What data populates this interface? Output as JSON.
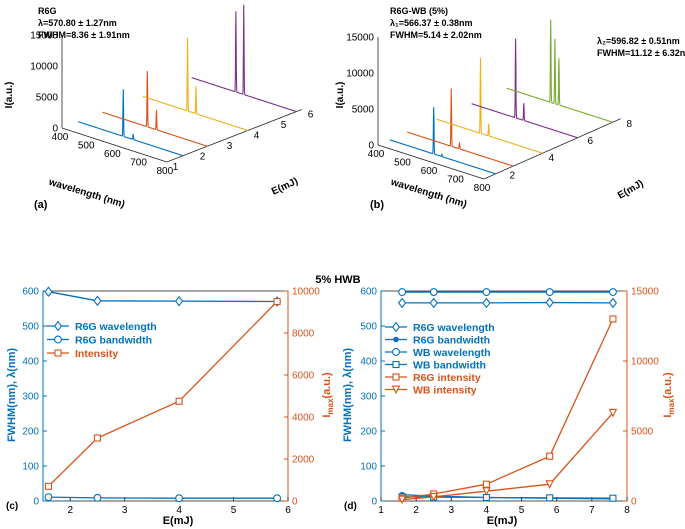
{
  "figure_title": "5% HWB",
  "colors": {
    "blue": "#0072BD",
    "orange": "#D95319",
    "yellow": "#EDB120",
    "purple": "#7E2F8E",
    "green": "#77AC30",
    "axis_orange": "#D95319",
    "axis_blue": "#0072BD"
  },
  "chart_data": [
    {
      "id": "a",
      "type": "line",
      "panel_label": "(a)",
      "annotation": {
        "title": "R6G",
        "lambda": "λ=570.80 ± 1.27nm",
        "fwhm": "FWHM=8.36 ± 1.91nm"
      },
      "xlabel": "wavelength (nm)",
      "ylabel": "I(a.u.)",
      "zlabel": "E(mJ)",
      "x_ticks": [
        "400",
        "500",
        "600",
        "700",
        "800"
      ],
      "y_ticks": [
        "0",
        "5000",
        "10000",
        "15000"
      ],
      "z_ticks": [
        "1",
        "2",
        "3",
        "4",
        "5",
        "6"
      ],
      "series": [
        {
          "energy": 1.6,
          "color": "#0072BD",
          "peaks": [
            {
              "x": 572,
              "y": 7600
            },
            {
              "x": 610,
              "y": 900
            }
          ]
        },
        {
          "energy": 2.5,
          "color": "#D95319",
          "peaks": [
            {
              "x": 571,
              "y": 9000
            },
            {
              "x": 606,
              "y": 3200
            }
          ]
        },
        {
          "energy": 4.0,
          "color": "#EDB120",
          "peaks": [
            {
              "x": 570,
              "y": 11800
            },
            {
              "x": 602,
              "y": 4400
            }
          ]
        },
        {
          "energy": 5.8,
          "color": "#7E2F8E",
          "peaks": [
            {
              "x": 569,
              "y": 13000
            },
            {
              "x": 599,
              "y": 14500
            }
          ]
        }
      ]
    },
    {
      "id": "b",
      "type": "line",
      "panel_label": "(b)",
      "annotation": {
        "title": "R6G-WB  (5%)",
        "lambda1": "λ₁=566.37 ± 0.38nm",
        "fwhm1": "FWHM=5.14 ± 2.02nm",
        "lambda2": "λ₂=596.82 ± 0.51nm",
        "fwhm2": "FWHM=11.12 ± 6.32nm"
      },
      "xlabel": "wavelength (nm)",
      "ylabel": "I(a.u.)",
      "zlabel": "E(mJ)",
      "x_ticks": [
        "400",
        "500",
        "600",
        "700",
        "800"
      ],
      "y_ticks": [
        "0",
        "5000",
        "10000",
        "15000"
      ],
      "z_ticks": [
        "2",
        "4",
        "6",
        "8"
      ],
      "series": [
        {
          "energy": 1.6,
          "color": "#0072BD",
          "peaks": [
            {
              "x": 566,
              "y": 6500
            },
            {
              "x": 597,
              "y": 300
            }
          ]
        },
        {
          "energy": 2.5,
          "color": "#D95319",
          "peaks": [
            {
              "x": 566,
              "y": 8000
            },
            {
              "x": 597,
              "y": 900
            }
          ]
        },
        {
          "energy": 4.0,
          "color": "#EDB120",
          "peaks": [
            {
              "x": 566,
              "y": 10500
            },
            {
              "x": 597,
              "y": 1700
            }
          ]
        },
        {
          "energy": 5.8,
          "color": "#7E2F8E",
          "peaks": [
            {
              "x": 566,
              "y": 11000
            },
            {
              "x": 597,
              "y": 2400
            }
          ]
        },
        {
          "energy": 7.6,
          "color": "#77AC30",
          "peaks": [
            {
              "x": 566,
              "y": 11500
            },
            {
              "x": 582,
              "y": 9000
            },
            {
              "x": 597,
              "y": 6500
            }
          ]
        }
      ]
    },
    {
      "id": "c",
      "type": "line",
      "panel_label": "(c)",
      "xlabel": "E(mJ)",
      "ylabel": "FWHM(nm),  λ(nm)",
      "y2label": "Imax(a.u.)",
      "xlim": [
        1.5,
        6
      ],
      "ylim": [
        0,
        600
      ],
      "y2lim": [
        0,
        10000
      ],
      "x_ticks": [
        2,
        3,
        4,
        5,
        6
      ],
      "y_ticks": [
        0,
        100,
        200,
        300,
        400,
        500,
        600
      ],
      "y2_ticks": [
        0,
        2000,
        4000,
        6000,
        8000,
        10000
      ],
      "series": [
        {
          "name": "R6G wavelength",
          "axis": "left",
          "color": "#0072BD",
          "marker": "diamond",
          "x": [
            1.6,
            2.5,
            4.0,
            5.8
          ],
          "y": [
            598,
            572,
            571,
            570
          ]
        },
        {
          "name": "R6G bandwidth",
          "axis": "left",
          "color": "#0072BD",
          "marker": "circle",
          "x": [
            1.6,
            2.5,
            4.0,
            5.8
          ],
          "y": [
            11,
            9,
            8,
            8
          ]
        },
        {
          "name": "Intensity",
          "axis": "right",
          "color": "#D95319",
          "marker": "square",
          "x": [
            1.6,
            2.5,
            4.0,
            5.8
          ],
          "y": [
            700,
            3000,
            4750,
            9500
          ]
        }
      ]
    },
    {
      "id": "d",
      "type": "line",
      "panel_label": "(d)",
      "xlabel": "E(mJ)",
      "ylabel": "FWHM(nm),  λ(nm)",
      "y2label": "Imax(a.u.)",
      "xlim": [
        1,
        8
      ],
      "ylim": [
        0,
        600
      ],
      "y2lim": [
        0,
        15000
      ],
      "x_ticks": [
        1,
        2,
        3,
        4,
        5,
        6,
        7,
        8
      ],
      "y_ticks": [
        0,
        100,
        200,
        300,
        400,
        500,
        600
      ],
      "y2_ticks": [
        0,
        5000,
        10000,
        15000
      ],
      "series": [
        {
          "name": "R6G wavelength",
          "axis": "left",
          "color": "#0072BD",
          "marker": "diamond",
          "x": [
            1.6,
            2.5,
            4.0,
            5.8,
            7.6
          ],
          "y": [
            566,
            566,
            566,
            567,
            566
          ]
        },
        {
          "name": "R6G bandwidth",
          "axis": "left",
          "color": "#0072BD",
          "marker": "dot",
          "x": [
            1.6,
            2.5,
            4.0,
            5.8,
            7.6
          ],
          "y": [
            18,
            14,
            10,
            8,
            6
          ]
        },
        {
          "name": "WB wavelength",
          "axis": "left",
          "color": "#0072BD",
          "marker": "circle",
          "x": [
            1.6,
            2.5,
            4.0,
            5.8,
            7.6
          ],
          "y": [
            597,
            597,
            597,
            597,
            597
          ]
        },
        {
          "name": "WB bandwidth",
          "axis": "left",
          "color": "#0072BD",
          "marker": "square",
          "x": [
            1.6,
            2.5,
            4.0,
            5.8,
            7.6
          ],
          "y": [
            12,
            11,
            10,
            9,
            8
          ]
        },
        {
          "name": "R6G intensity",
          "axis": "right",
          "color": "#D95319",
          "marker": "square",
          "x": [
            1.6,
            2.5,
            4.0,
            5.8,
            7.6
          ],
          "y": [
            200,
            500,
            1200,
            3200,
            13000
          ]
        },
        {
          "name": "WB intensity",
          "axis": "right",
          "color": "#D95319",
          "marker": "triangle-down",
          "x": [
            1.6,
            2.5,
            4.0,
            5.8,
            7.6
          ],
          "y": [
            100,
            300,
            700,
            1200,
            6300
          ]
        }
      ]
    }
  ]
}
